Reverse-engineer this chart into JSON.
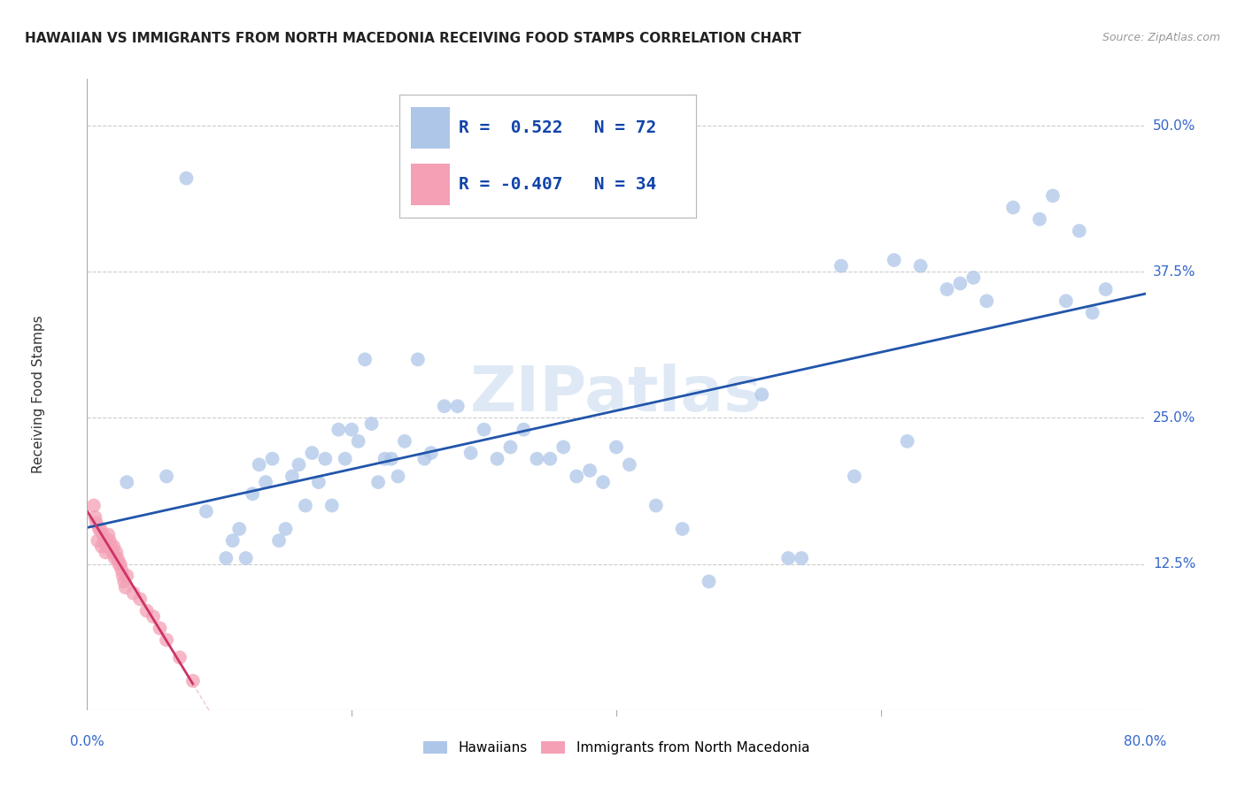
{
  "title": "HAWAIIAN VS IMMIGRANTS FROM NORTH MACEDONIA RECEIVING FOOD STAMPS CORRELATION CHART",
  "source": "Source: ZipAtlas.com",
  "ylabel": "Receiving Food Stamps",
  "ytick_labels": [
    "12.5%",
    "25.0%",
    "37.5%",
    "50.0%"
  ],
  "ytick_values": [
    0.125,
    0.25,
    0.375,
    0.5
  ],
  "xlim": [
    0.0,
    0.8
  ],
  "ylim": [
    0.0,
    0.54
  ],
  "blue_color": "#aec6e8",
  "blue_line_color": "#2255aa",
  "pink_color": "#f4a0b5",
  "pink_line_color": "#cc3366",
  "pink_line_dash_color": "#e8a0bb",
  "background_color": "#ffffff",
  "grid_color": "#cccccc",
  "hawaiians_x": [
    0.03,
    0.06,
    0.075,
    0.09,
    0.105,
    0.11,
    0.115,
    0.12,
    0.125,
    0.13,
    0.135,
    0.14,
    0.145,
    0.15,
    0.155,
    0.16,
    0.165,
    0.17,
    0.175,
    0.18,
    0.185,
    0.19,
    0.195,
    0.2,
    0.205,
    0.21,
    0.215,
    0.22,
    0.225,
    0.23,
    0.235,
    0.24,
    0.25,
    0.255,
    0.26,
    0.27,
    0.28,
    0.29,
    0.3,
    0.31,
    0.32,
    0.33,
    0.34,
    0.35,
    0.36,
    0.37,
    0.38,
    0.39,
    0.4,
    0.41,
    0.43,
    0.45,
    0.47,
    0.53,
    0.54,
    0.57,
    0.58,
    0.61,
    0.63,
    0.65,
    0.66,
    0.67,
    0.68,
    0.7,
    0.72,
    0.73,
    0.74,
    0.75,
    0.76,
    0.77,
    0.51,
    0.62
  ],
  "hawaiians_y": [
    0.195,
    0.2,
    0.455,
    0.17,
    0.13,
    0.145,
    0.155,
    0.13,
    0.185,
    0.21,
    0.195,
    0.215,
    0.145,
    0.155,
    0.2,
    0.21,
    0.175,
    0.22,
    0.195,
    0.215,
    0.175,
    0.24,
    0.215,
    0.24,
    0.23,
    0.3,
    0.245,
    0.195,
    0.215,
    0.215,
    0.2,
    0.23,
    0.3,
    0.215,
    0.22,
    0.26,
    0.26,
    0.22,
    0.24,
    0.215,
    0.225,
    0.24,
    0.215,
    0.215,
    0.225,
    0.2,
    0.205,
    0.195,
    0.225,
    0.21,
    0.175,
    0.155,
    0.11,
    0.13,
    0.13,
    0.38,
    0.2,
    0.385,
    0.38,
    0.36,
    0.365,
    0.37,
    0.35,
    0.43,
    0.42,
    0.44,
    0.35,
    0.41,
    0.34,
    0.36,
    0.27,
    0.23
  ],
  "macedonians_x": [
    0.005,
    0.006,
    0.007,
    0.008,
    0.009,
    0.01,
    0.011,
    0.012,
    0.013,
    0.014,
    0.015,
    0.016,
    0.017,
    0.018,
    0.019,
    0.02,
    0.021,
    0.022,
    0.023,
    0.024,
    0.025,
    0.026,
    0.027,
    0.028,
    0.029,
    0.03,
    0.035,
    0.04,
    0.045,
    0.05,
    0.055,
    0.06,
    0.07,
    0.08
  ],
  "macedonians_y": [
    0.175,
    0.165,
    0.16,
    0.145,
    0.155,
    0.155,
    0.14,
    0.15,
    0.145,
    0.135,
    0.14,
    0.15,
    0.145,
    0.14,
    0.135,
    0.14,
    0.13,
    0.135,
    0.13,
    0.125,
    0.125,
    0.12,
    0.115,
    0.11,
    0.105,
    0.115,
    0.1,
    0.095,
    0.085,
    0.08,
    0.07,
    0.06,
    0.045,
    0.025
  ],
  "title_fontsize": 11,
  "axis_label_fontsize": 11,
  "tick_fontsize": 11,
  "legend_fontsize": 14
}
